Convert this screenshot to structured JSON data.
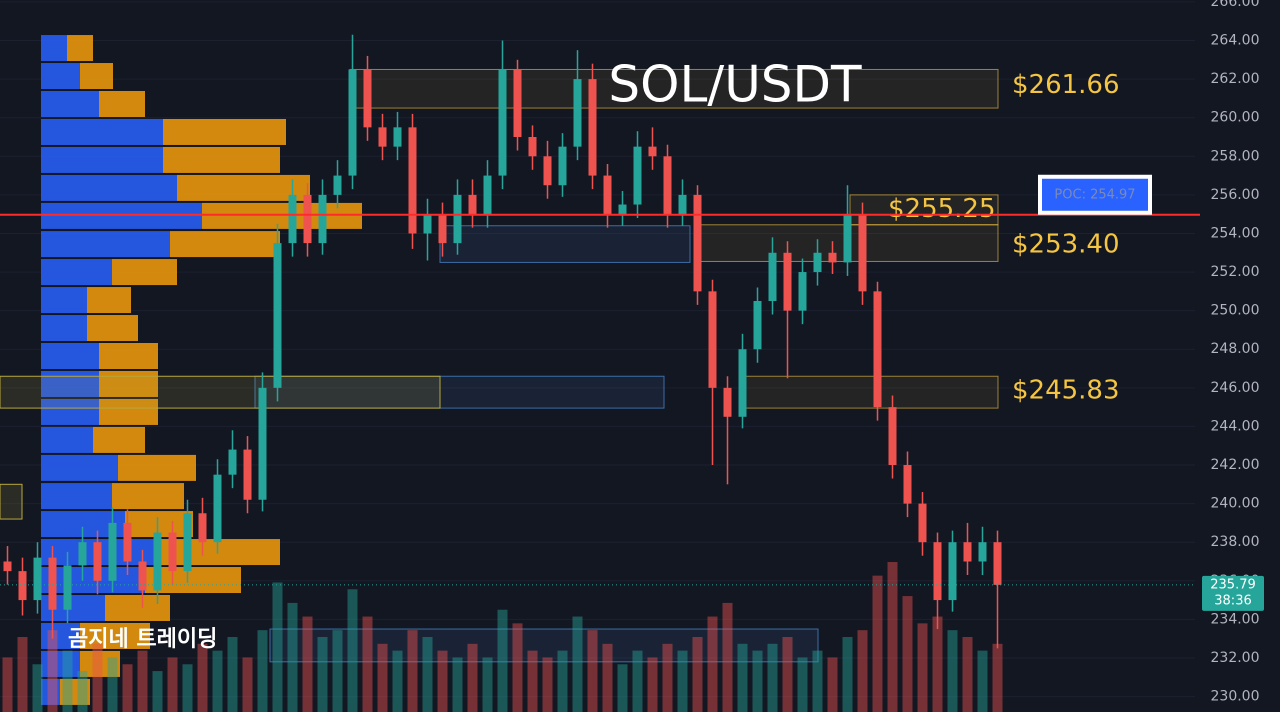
{
  "chart_data": {
    "type": "candlestick",
    "title": "SOL/USDT",
    "watermark": "곰지네 트레이딩",
    "ylim": [
      229.2,
      266.1
    ],
    "yticks": [
      {
        "value": 230,
        "label": "230.00"
      },
      {
        "value": 232,
        "label": "232.00"
      },
      {
        "value": 234,
        "label": "234.00"
      },
      {
        "value": 236,
        "label": "236.00"
      },
      {
        "value": 238,
        "label": "238.00"
      },
      {
        "value": 240,
        "label": "240.00"
      },
      {
        "value": 242,
        "label": "242.00"
      },
      {
        "value": 244,
        "label": "244.00"
      },
      {
        "value": 246,
        "label": "246.00"
      },
      {
        "value": 248,
        "label": "248.00"
      },
      {
        "value": 250,
        "label": "250.00"
      },
      {
        "value": 252,
        "label": "252.00"
      },
      {
        "value": 254,
        "label": "254.00"
      },
      {
        "value": 256,
        "label": "256.00"
      },
      {
        "value": 258,
        "label": "258.00"
      },
      {
        "value": 260,
        "label": "260.00"
      },
      {
        "value": 262,
        "label": "262.00"
      },
      {
        "value": 264,
        "label": "264.00"
      },
      {
        "value": 266,
        "label": "266.00"
      }
    ],
    "up_color": "#26a69a",
    "down_color": "#ef5350",
    "candles": {
      "open": [
        237.0,
        236.5,
        235.0,
        237.2,
        234.5,
        236.8,
        238.0,
        236.0,
        239.0,
        237.0,
        235.5,
        238.5,
        236.5,
        239.5,
        238.0,
        241.5,
        242.8,
        240.2,
        246.0,
        253.5,
        256.0,
        253.5,
        256.0,
        257.0,
        262.5,
        259.5,
        258.5,
        259.5,
        254.0,
        255.0,
        253.5,
        256.0,
        255.0,
        257.0,
        262.5,
        259.0,
        258.0,
        256.5,
        258.5,
        262.0,
        257.0,
        255.0,
        255.5,
        258.5,
        258.0,
        255.0,
        256.0,
        251.0,
        246.0,
        244.5,
        248.0,
        250.5,
        253.0,
        250.0,
        252.0,
        253.0,
        252.5,
        255.0,
        251.0,
        245.0,
        242.0,
        240.0,
        238.0,
        235.0,
        238.0,
        237.0,
        238.0
      ],
      "high": [
        237.8,
        237.2,
        238.0,
        237.8,
        237.5,
        238.8,
        238.6,
        239.8,
        239.7,
        237.6,
        239.3,
        239.1,
        240.2,
        240.3,
        242.3,
        243.8,
        243.5,
        246.8,
        254.5,
        256.8,
        256.6,
        256.8,
        257.8,
        264.3,
        263.2,
        260.2,
        260.3,
        260.2,
        255.8,
        255.6,
        256.8,
        256.8,
        257.8,
        264.0,
        263.0,
        259.6,
        258.8,
        259.2,
        263.5,
        262.8,
        257.6,
        256.2,
        259.3,
        259.5,
        258.6,
        256.8,
        256.5,
        251.6,
        246.6,
        248.8,
        251.2,
        253.8,
        253.6,
        252.7,
        253.7,
        253.6,
        256.5,
        255.6,
        251.5,
        245.6,
        242.7,
        240.6,
        238.5,
        238.6,
        239.0,
        238.8,
        238.6
      ],
      "low": [
        235.8,
        234.2,
        234.3,
        233.0,
        233.8,
        236.0,
        235.3,
        235.4,
        236.3,
        234.6,
        234.8,
        235.8,
        235.9,
        237.3,
        237.4,
        240.8,
        239.5,
        239.6,
        245.3,
        252.8,
        252.8,
        252.9,
        255.3,
        256.3,
        258.8,
        257.8,
        257.8,
        253.2,
        252.6,
        252.8,
        252.9,
        254.3,
        254.3,
        256.3,
        258.3,
        257.3,
        255.8,
        255.9,
        257.8,
        256.3,
        254.3,
        254.4,
        254.8,
        257.3,
        254.3,
        254.4,
        250.3,
        242.0,
        241.0,
        243.9,
        247.3,
        249.8,
        246.5,
        249.3,
        251.3,
        251.9,
        251.8,
        250.3,
        244.3,
        241.3,
        239.3,
        237.3,
        233.5,
        234.4,
        236.3,
        236.3,
        232.5
      ],
      "close": [
        236.5,
        235.0,
        237.2,
        234.5,
        236.8,
        238.0,
        236.0,
        239.0,
        237.0,
        235.5,
        238.5,
        236.5,
        239.5,
        238.0,
        241.5,
        242.8,
        240.2,
        246.0,
        253.5,
        256.0,
        253.5,
        256.0,
        257.0,
        262.5,
        259.5,
        258.5,
        259.5,
        254.0,
        255.0,
        253.5,
        256.0,
        255.0,
        257.0,
        262.5,
        259.0,
        258.0,
        256.5,
        258.5,
        262.0,
        257.0,
        255.0,
        255.5,
        258.5,
        258.0,
        255.0,
        256.0,
        251.0,
        246.0,
        244.5,
        248.0,
        250.5,
        253.0,
        250.0,
        252.0,
        253.0,
        252.5,
        255.0,
        251.0,
        245.0,
        242.0,
        240.0,
        238.0,
        235.0,
        238.0,
        237.0,
        238.0,
        235.79
      ],
      "volume": [
        40,
        55,
        35,
        60,
        45,
        30,
        50,
        40,
        35,
        45,
        30,
        40,
        35,
        50,
        45,
        55,
        40,
        60,
        95,
        80,
        70,
        55,
        60,
        90,
        70,
        50,
        45,
        60,
        55,
        45,
        40,
        50,
        40,
        75,
        65,
        45,
        40,
        45,
        70,
        60,
        50,
        35,
        45,
        40,
        50,
        45,
        55,
        70,
        80,
        50,
        45,
        50,
        55,
        40,
        45,
        40,
        55,
        60,
        100,
        110,
        85,
        65,
        70,
        60,
        55,
        45,
        50
      ]
    },
    "volume_profile": {
      "prices": [
        263.61,
        262.16,
        260.71,
        259.26,
        257.81,
        256.36,
        254.91,
        253.45,
        252.0,
        250.55,
        249.1,
        247.65,
        246.2,
        244.75,
        243.3,
        241.85,
        240.39,
        238.94,
        237.49,
        236.04,
        234.59,
        233.14,
        231.69,
        230.24
      ],
      "buy": [
        26,
        39,
        58,
        122,
        122,
        136,
        161,
        129,
        71,
        46,
        46,
        58,
        58,
        58,
        52,
        77,
        71,
        84,
        119,
        104,
        64,
        39,
        39,
        19
      ],
      "sell": [
        26,
        33,
        46,
        123,
        117,
        133,
        160,
        110,
        65,
        44,
        51,
        59,
        59,
        59,
        52,
        78,
        72,
        68,
        120,
        96,
        65,
        70,
        40,
        30
      ],
      "buy_color": "#2962ff",
      "sell_color": "#f59e0b"
    },
    "zones": [
      {
        "label": "$261.66",
        "value": 261.66,
        "high": 262.5,
        "low": 260.5
      },
      {
        "label": "$255.25",
        "value": 255.25,
        "high": 256.0,
        "low": 254.45
      },
      {
        "label": "$253.40",
        "value": 253.4,
        "high": 254.45,
        "low": 252.55
      },
      {
        "label": "$245.83",
        "value": 245.83,
        "high": 246.6,
        "low": 244.95
      }
    ],
    "zone_color": "#f5c542",
    "boxes": [
      {
        "high": 254.4,
        "low": 252.5,
        "color": "#3b6ea8"
      },
      {
        "high": 246.6,
        "low": 244.95,
        "color": "#3b6ea8"
      },
      {
        "high": 246.6,
        "low": 244.95,
        "color": "#b8a83a"
      },
      {
        "high": 233.5,
        "low": 231.8,
        "color": "#3b6ea8"
      },
      {
        "high": 241.0,
        "low": 239.2,
        "color": "#b8a83a"
      }
    ],
    "poc": 254.97,
    "poc_label": "POC: 254.97",
    "poc_color": "#ff2a2a",
    "last_price": 235.79,
    "countdown": "38:36"
  }
}
